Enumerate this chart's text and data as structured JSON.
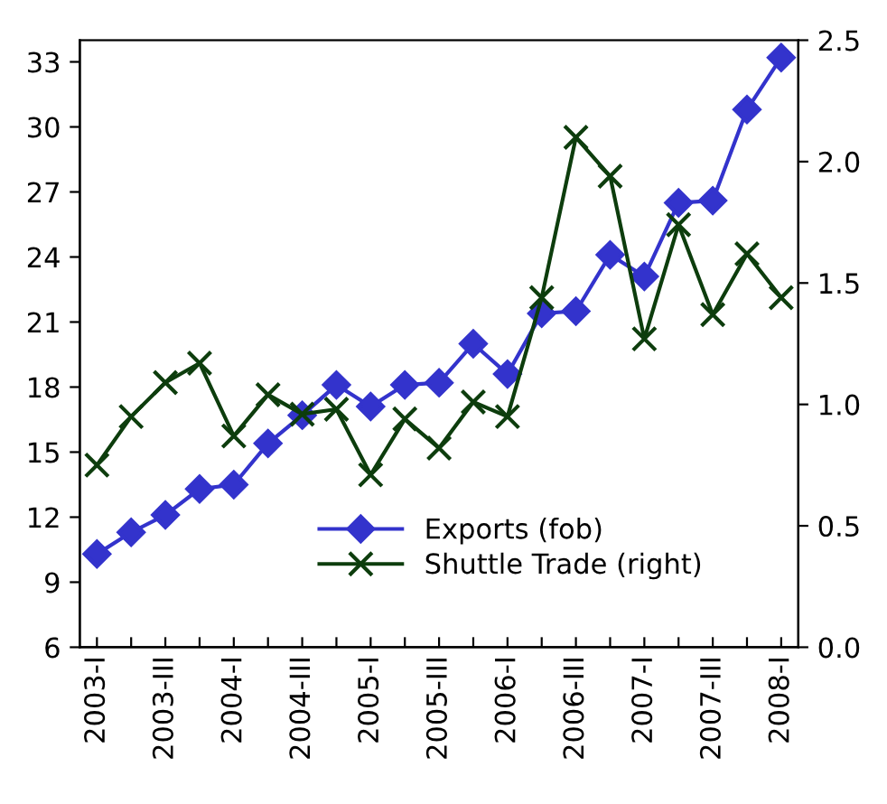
{
  "chart_data": {
    "type": "line",
    "categories": [
      "2003-I",
      null,
      "2003-III",
      null,
      "2004-I",
      null,
      "2004-III",
      null,
      "2005-I",
      null,
      "2005-III",
      null,
      "2006-I",
      null,
      "2006-III",
      null,
      "2007-I",
      null,
      "2007-III",
      null,
      "2008-I"
    ],
    "series": [
      {
        "name": "Exports (fob)",
        "color": "#3333cc",
        "marker": "diamond",
        "values": [
          10.3,
          11.3,
          12.1,
          13.3,
          13.5,
          15.4,
          16.7,
          18.1,
          17.1,
          18.1,
          18.2,
          20.0,
          18.6,
          21.4,
          21.5,
          24.1,
          23.1,
          26.5,
          26.6,
          30.8,
          33.2
        ]
      },
      {
        "name": "Shuttle Trade (right)",
        "color": "#0d3d0d",
        "marker": "cross",
        "axis": "y2",
        "values": [
          0.75,
          0.95,
          1.09,
          1.17,
          0.87,
          1.04,
          0.96,
          0.98,
          0.71,
          0.94,
          0.82,
          1.01,
          0.95,
          1.44,
          2.1,
          1.94,
          1.27,
          1.74,
          1.37,
          1.62,
          1.44
        ]
      }
    ],
    "ylim": [
      6,
      34
    ],
    "yticks": [
      6,
      9,
      12,
      15,
      18,
      21,
      24,
      27,
      30,
      33
    ],
    "y2lim": [
      0,
      2.5
    ],
    "y2ticks": [
      {
        "value": 0,
        "label": "0.0"
      },
      0.5,
      {
        "value": 1,
        "label": "1.0"
      },
      1.5,
      {
        "value": 2,
        "label": "2.0"
      },
      2.5
    ],
    "legend": "bottom",
    "grid": false,
    "line_style": "solid"
  }
}
